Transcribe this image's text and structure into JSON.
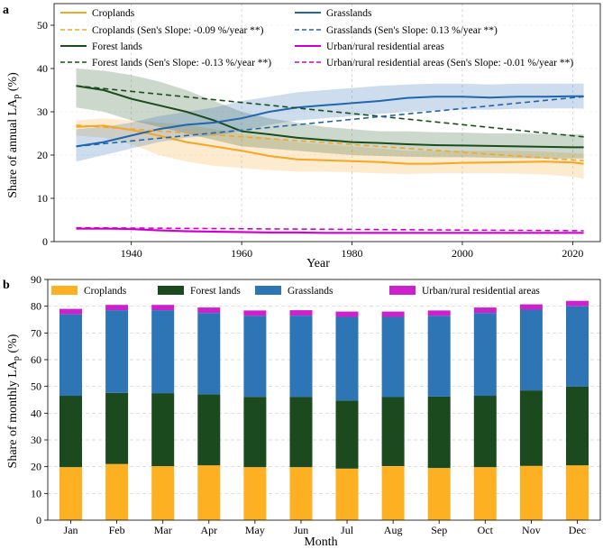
{
  "chart_data": [
    {
      "panel": "a",
      "type": "line",
      "xlabel": "Year",
      "ylabel": "Share of annual LA",
      "ylabel_sub": "p",
      "ylabel_unit": " (%)",
      "xlim": [
        1926,
        2025
      ],
      "ylim": [
        0,
        55
      ],
      "xticks": [
        1940,
        1960,
        1980,
        2000,
        2020
      ],
      "yticks": [
        0,
        10,
        20,
        30,
        40,
        50
      ],
      "grid": true,
      "legend_position": "top",
      "x": [
        1930,
        1935,
        1940,
        1945,
        1950,
        1955,
        1960,
        1965,
        1970,
        1975,
        1980,
        1985,
        1990,
        1995,
        2000,
        2005,
        2010,
        2015,
        2020,
        2022
      ],
      "series": [
        {
          "name": "Croplands",
          "color": "#f5a623",
          "values": [
            26.5,
            26.8,
            25.8,
            24.5,
            23.0,
            22.0,
            21.0,
            19.8,
            19.0,
            18.8,
            18.6,
            18.4,
            18.0,
            18.0,
            18.2,
            18.3,
            18.4,
            18.5,
            18.3,
            18.0
          ],
          "lower": [
            24.5,
            24.0,
            22.5,
            20.0,
            18.5,
            17.5,
            17.0,
            16.5,
            16.2,
            16.2,
            16.0,
            15.8,
            15.6,
            15.8,
            15.8,
            15.8,
            15.7,
            15.5,
            15.0,
            14.5
          ],
          "upper": [
            28.0,
            28.5,
            28.0,
            27.5,
            27.0,
            26.0,
            25.0,
            24.0,
            23.0,
            22.5,
            22.0,
            21.5,
            21.0,
            21.0,
            21.0,
            21.0,
            21.0,
            20.8,
            20.5,
            20.3
          ]
        },
        {
          "name": "Forest lands",
          "color": "#1b4d1b",
          "values": [
            36.0,
            35.0,
            33.0,
            31.5,
            30.0,
            28.0,
            25.5,
            24.8,
            24.0,
            23.5,
            23.0,
            22.8,
            22.5,
            22.3,
            22.2,
            22.1,
            22.0,
            21.9,
            21.8,
            21.8
          ],
          "lower": [
            31.0,
            30.0,
            28.0,
            26.5,
            25.0,
            23.5,
            22.0,
            21.5,
            21.0,
            20.5,
            20.0,
            19.8,
            19.6,
            19.5,
            19.5,
            19.4,
            19.3,
            19.2,
            19.2,
            19.2
          ],
          "upper": [
            40.0,
            39.5,
            38.5,
            37.0,
            35.0,
            32.5,
            30.0,
            28.5,
            27.5,
            26.5,
            26.0,
            25.5,
            25.5,
            25.3,
            25.2,
            25.0,
            25.0,
            24.9,
            24.8,
            24.8
          ]
        },
        {
          "name": "Grasslands",
          "color": "#2166ac",
          "values": [
            22.0,
            23.0,
            24.5,
            26.0,
            27.0,
            27.5,
            28.5,
            30.0,
            31.0,
            31.5,
            32.0,
            32.5,
            33.2,
            33.5,
            33.5,
            33.3,
            33.5,
            33.5,
            33.6,
            33.6
          ],
          "lower": [
            18.5,
            20.0,
            21.5,
            23.0,
            24.0,
            24.5,
            25.5,
            27.0,
            28.0,
            28.5,
            29.0,
            29.5,
            30.0,
            30.3,
            30.5,
            30.5,
            30.7,
            30.8,
            30.8,
            30.7
          ],
          "upper": [
            26.0,
            26.5,
            27.5,
            29.0,
            30.0,
            31.0,
            32.5,
            33.5,
            34.5,
            35.0,
            35.5,
            36.0,
            36.3,
            36.5,
            36.5,
            36.3,
            36.5,
            36.5,
            36.5,
            36.5
          ]
        },
        {
          "name": "Urban/rural residential areas",
          "color": "#cc00cc",
          "values": [
            3.0,
            3.0,
            2.9,
            2.6,
            2.4,
            2.3,
            2.2,
            2.1,
            2.1,
            2.0,
            2.0,
            2.0,
            2.0,
            2.0,
            2.0,
            2.0,
            2.0,
            2.0,
            2.0,
            2.0
          ],
          "lower": [
            2.7,
            2.7,
            2.6,
            2.3,
            2.1,
            2.0,
            1.9,
            1.8,
            1.8,
            1.8,
            1.8,
            1.8,
            1.8,
            1.8,
            1.8,
            1.8,
            1.8,
            1.8,
            1.8,
            1.8
          ],
          "upper": [
            3.3,
            3.3,
            3.2,
            2.9,
            2.7,
            2.6,
            2.5,
            2.4,
            2.4,
            2.3,
            2.3,
            2.3,
            2.3,
            2.3,
            2.3,
            2.3,
            2.3,
            2.3,
            2.3,
            2.3
          ]
        }
      ],
      "trends": [
        {
          "name": "Croplands (Sen's Slope: -0.09 %/year **)",
          "color": "#f5a623",
          "x": [
            1930,
            2022
          ],
          "y": [
            26.9,
            18.7
          ]
        },
        {
          "name": "Forest lands (Sen's Slope: -0.13 %/year **)",
          "color": "#1b4d1b",
          "x": [
            1930,
            2022
          ],
          "y": [
            36.0,
            24.2
          ]
        },
        {
          "name": "Grasslands (Sen's Slope: 0.13 %/year **)",
          "color": "#2166ac",
          "x": [
            1930,
            2022
          ],
          "y": [
            22.0,
            33.5
          ]
        },
        {
          "name": "Urban/rural residential areas (Sen's Slope: -0.01 %/year **)",
          "color": "#cc00cc",
          "x": [
            1930,
            2022
          ],
          "y": [
            3.2,
            2.5
          ]
        }
      ],
      "legend": [
        {
          "label": "Croplands",
          "color": "#f5a623",
          "dash": false
        },
        {
          "label": "Grasslands",
          "color": "#2166ac",
          "dash": false
        },
        {
          "label": "Croplands (Sen's Slope: -0.09 %/year **)",
          "color": "#f5a623",
          "dash": true
        },
        {
          "label": "Grasslands (Sen's Slope: 0.13 %/year **)",
          "color": "#2166ac",
          "dash": true
        },
        {
          "label": "Forest lands",
          "color": "#1b4d1b",
          "dash": false
        },
        {
          "label": "Urban/rural residential areas",
          "color": "#cc00cc",
          "dash": false
        },
        {
          "label": "Forest lands (Sen's Slope: -0.13 %/year **)",
          "color": "#1b4d1b",
          "dash": true
        },
        {
          "label": "Urban/rural residential areas (Sen's Slope: -0.01 %/year **)",
          "color": "#cc00cc",
          "dash": true
        }
      ]
    },
    {
      "panel": "b",
      "type": "bar",
      "stacked": true,
      "xlabel": "Month",
      "ylabel": "Share of monthly LA",
      "ylabel_sub": "p",
      "ylabel_unit": " (%)",
      "ylim": [
        0,
        90
      ],
      "yticks": [
        0,
        10,
        20,
        30,
        40,
        50,
        60,
        70,
        80,
        90
      ],
      "grid": true,
      "legend_position": "top",
      "categories": [
        "Jan",
        "Feb",
        "Mar",
        "Apr",
        "May",
        "Jun",
        "Jul",
        "Aug",
        "Sep",
        "Oct",
        "Nov",
        "Dec"
      ],
      "series": [
        {
          "name": "Croplands",
          "color": "#fdb022",
          "values": [
            19.8,
            21.0,
            20.2,
            20.5,
            19.8,
            19.8,
            19.3,
            20.2,
            19.5,
            19.8,
            20.3,
            20.5
          ]
        },
        {
          "name": "Forest lands",
          "color": "#1b4a1e",
          "values": [
            26.7,
            26.6,
            27.3,
            26.6,
            26.3,
            26.3,
            25.4,
            25.8,
            26.7,
            26.7,
            28.2,
            29.5
          ]
        },
        {
          "name": "Grasslands",
          "color": "#2e75b6",
          "values": [
            30.5,
            30.9,
            31.0,
            30.4,
            30.3,
            30.4,
            31.3,
            30.0,
            30.2,
            31.0,
            30.2,
            30.0
          ]
        },
        {
          "name": "Urban/rural residential areas",
          "color": "#cc22cc",
          "values": [
            2.0,
            2.0,
            2.0,
            2.0,
            2.0,
            2.0,
            2.0,
            2.0,
            2.0,
            2.0,
            2.0,
            2.0
          ]
        }
      ]
    }
  ]
}
